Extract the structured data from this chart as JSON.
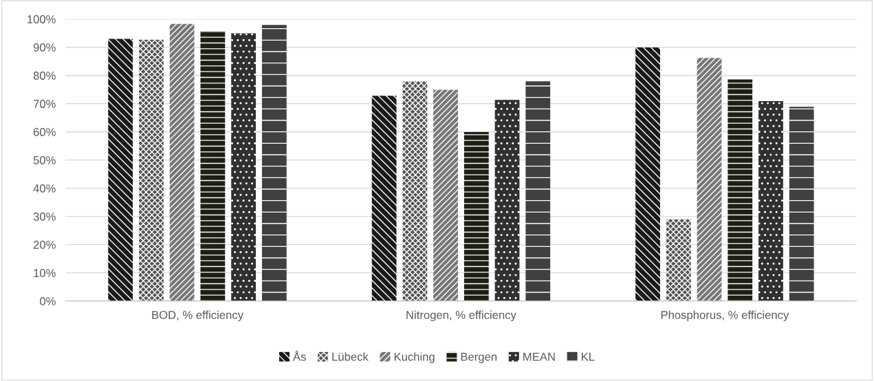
{
  "chart_data": {
    "type": "bar",
    "categories": [
      "BOD, % efficiency",
      "Nitrogen, % efficiency",
      "Phosphorus, % efficiency"
    ],
    "series": [
      {
        "name": "Ås",
        "color": "#1a1a1a",
        "values": [
          93,
          72.8,
          89.9
        ]
      },
      {
        "name": "Lübeck",
        "color": "#555555",
        "values": [
          92.7,
          77.9,
          29
        ]
      },
      {
        "name": "Kuching",
        "color": "#777777",
        "values": [
          98.3,
          74.9,
          86.2
        ]
      },
      {
        "name": "Bergen",
        "color": "#1e1e14",
        "values": [
          95.8,
          59.9,
          78.6
        ]
      },
      {
        "name": "MEAN",
        "color": "#303030",
        "values": [
          94.9,
          71.3,
          70.9
        ]
      },
      {
        "name": "KL",
        "color": "#404040",
        "values": [
          97.9,
          77.9,
          68.9
        ]
      }
    ],
    "ylim": [
      0,
      100
    ],
    "yticks": [
      {
        "value": 0,
        "label": "0%"
      },
      {
        "value": 10,
        "label": "10%"
      },
      {
        "value": 20,
        "label": "20%"
      },
      {
        "value": 30,
        "label": "30%"
      },
      {
        "value": 40,
        "label": "40%"
      },
      {
        "value": 50,
        "label": "50%"
      },
      {
        "value": 60,
        "label": "60%"
      },
      {
        "value": 70,
        "label": "70%"
      },
      {
        "value": 80,
        "label": "80%"
      },
      {
        "value": 90,
        "label": "90%"
      },
      {
        "value": 100,
        "label": "100%"
      }
    ],
    "grid": "y",
    "legend": "bottom"
  }
}
